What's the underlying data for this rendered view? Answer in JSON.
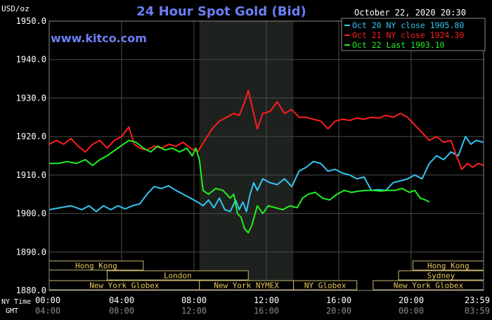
{
  "chart_data": {
    "type": "line",
    "title": "24 Hour Spot Gold (Bid)",
    "ylabel": "USD/oz",
    "watermark": "www.kitco.com",
    "timestamp": "October 22, 2020 20:30",
    "ylim": [
      1880,
      1950
    ],
    "y_ticks": [
      "1950.0",
      "1940.0",
      "1930.0",
      "1920.0",
      "1910.0",
      "1900.0",
      "1890.0",
      "1880.0"
    ],
    "x_range_hours": [
      0,
      24
    ],
    "x_ticks": [
      {
        "ny": "00:00",
        "gmt": "04:00"
      },
      {
        "ny": "04:00",
        "gmt": "08:00"
      },
      {
        "ny": "08:00",
        "gmt": "12:00"
      },
      {
        "ny": "12:00",
        "gmt": "16:00"
      },
      {
        "ny": "16:00",
        "gmt": "20:00"
      },
      {
        "ny": "20:00",
        "gmt": "00:00"
      },
      {
        "ny": "23:59",
        "gmt": "03:59"
      }
    ],
    "ny_time_label": "NY Time",
    "gmt_label": "GMT",
    "grid": true,
    "highlight_window_hours": [
      8.3,
      13.5
    ],
    "legend_position": "top-right",
    "series": [
      {
        "name": "Oct 20 NY close 1905.80",
        "color": "#33c6f0",
        "points": [
          [
            0,
            1901
          ],
          [
            0.6,
            1901.5
          ],
          [
            1.2,
            1902
          ],
          [
            1.8,
            1901
          ],
          [
            2.2,
            1902
          ],
          [
            2.6,
            1900.5
          ],
          [
            3.0,
            1902
          ],
          [
            3.4,
            1901
          ],
          [
            3.8,
            1902
          ],
          [
            4.2,
            1901.2
          ],
          [
            4.6,
            1902
          ],
          [
            5.0,
            1902.5
          ],
          [
            5.4,
            1905
          ],
          [
            5.8,
            1907
          ],
          [
            6.2,
            1906.5
          ],
          [
            6.6,
            1907.2
          ],
          [
            7.0,
            1906
          ],
          [
            7.4,
            1905
          ],
          [
            7.8,
            1904
          ],
          [
            8.2,
            1903
          ],
          [
            8.5,
            1902
          ],
          [
            8.8,
            1903.5
          ],
          [
            9.1,
            1901.5
          ],
          [
            9.4,
            1904
          ],
          [
            9.7,
            1901
          ],
          [
            10.0,
            1900.5
          ],
          [
            10.3,
            1903.5
          ],
          [
            10.5,
            1901
          ],
          [
            10.7,
            1903
          ],
          [
            10.9,
            1900.5
          ],
          [
            11.1,
            1905
          ],
          [
            11.3,
            1908
          ],
          [
            11.5,
            1906
          ],
          [
            11.8,
            1909
          ],
          [
            12.2,
            1908
          ],
          [
            12.6,
            1907.5
          ],
          [
            13.0,
            1909
          ],
          [
            13.4,
            1907
          ],
          [
            13.8,
            1911
          ],
          [
            14.2,
            1912
          ],
          [
            14.6,
            1913.5
          ],
          [
            15.0,
            1913
          ],
          [
            15.4,
            1911
          ],
          [
            15.8,
            1911.5
          ],
          [
            16.2,
            1910.5
          ],
          [
            16.6,
            1910
          ],
          [
            17.0,
            1909
          ],
          [
            17.4,
            1909.5
          ],
          [
            17.8,
            1906
          ],
          [
            18.2,
            1906.2
          ],
          [
            18.6,
            1906
          ],
          [
            19.0,
            1908
          ],
          [
            19.4,
            1908.5
          ],
          [
            19.8,
            1909
          ],
          [
            20.2,
            1910
          ],
          [
            20.6,
            1909
          ],
          [
            21.0,
            1913
          ],
          [
            21.4,
            1915
          ],
          [
            21.8,
            1914
          ],
          [
            22.2,
            1916
          ],
          [
            22.6,
            1915
          ],
          [
            23.0,
            1920
          ],
          [
            23.3,
            1918
          ],
          [
            23.6,
            1919
          ],
          [
            24.0,
            1918.5
          ]
        ]
      },
      {
        "name": "Oct 21 NY close 1924.30",
        "color": "#ff1e1e",
        "points": [
          [
            0,
            1918
          ],
          [
            0.4,
            1919
          ],
          [
            0.8,
            1918
          ],
          [
            1.2,
            1919.5
          ],
          [
            1.6,
            1917.5
          ],
          [
            2.0,
            1916
          ],
          [
            2.4,
            1918
          ],
          [
            2.8,
            1919
          ],
          [
            3.2,
            1917
          ],
          [
            3.6,
            1919
          ],
          [
            4.0,
            1920
          ],
          [
            4.4,
            1922.5
          ],
          [
            4.7,
            1918
          ],
          [
            5.0,
            1917
          ],
          [
            5.4,
            1916.5
          ],
          [
            5.8,
            1917.5
          ],
          [
            6.2,
            1917
          ],
          [
            6.6,
            1918
          ],
          [
            7.0,
            1917.5
          ],
          [
            7.4,
            1918.5
          ],
          [
            7.8,
            1917
          ],
          [
            8.2,
            1916
          ],
          [
            8.6,
            1919
          ],
          [
            9.0,
            1922
          ],
          [
            9.4,
            1924
          ],
          [
            9.8,
            1925
          ],
          [
            10.2,
            1926
          ],
          [
            10.5,
            1925.5
          ],
          [
            10.8,
            1929
          ],
          [
            11.0,
            1932
          ],
          [
            11.2,
            1928
          ],
          [
            11.5,
            1922
          ],
          [
            11.8,
            1926
          ],
          [
            12.2,
            1926.5
          ],
          [
            12.6,
            1929
          ],
          [
            13.0,
            1926
          ],
          [
            13.4,
            1927
          ],
          [
            13.8,
            1925
          ],
          [
            14.2,
            1925
          ],
          [
            14.6,
            1924.5
          ],
          [
            15.0,
            1924
          ],
          [
            15.4,
            1922
          ],
          [
            15.8,
            1924
          ],
          [
            16.2,
            1924.5
          ],
          [
            16.6,
            1924.2
          ],
          [
            17.0,
            1924.8
          ],
          [
            17.4,
            1924.5
          ],
          [
            17.8,
            1925
          ],
          [
            18.2,
            1924.8
          ],
          [
            18.6,
            1925.5
          ],
          [
            19.0,
            1925
          ],
          [
            19.4,
            1926
          ],
          [
            19.8,
            1925
          ],
          [
            20.2,
            1923
          ],
          [
            20.6,
            1921
          ],
          [
            21.0,
            1919
          ],
          [
            21.4,
            1920
          ],
          [
            21.8,
            1918.5
          ],
          [
            22.2,
            1919
          ],
          [
            22.5,
            1915
          ],
          [
            22.8,
            1911.5
          ],
          [
            23.1,
            1913
          ],
          [
            23.4,
            1912
          ],
          [
            23.7,
            1913
          ],
          [
            24.0,
            1912.5
          ]
        ]
      },
      {
        "name": "Oct 22 Last 1903.10",
        "color": "#22ee22",
        "points": [
          [
            0,
            1913
          ],
          [
            0.5,
            1913
          ],
          [
            1.0,
            1913.5
          ],
          [
            1.5,
            1913
          ],
          [
            2.0,
            1914
          ],
          [
            2.4,
            1912.5
          ],
          [
            2.8,
            1914
          ],
          [
            3.2,
            1915
          ],
          [
            3.5,
            1916
          ],
          [
            3.8,
            1917
          ],
          [
            4.1,
            1918
          ],
          [
            4.4,
            1919
          ],
          [
            4.8,
            1918.5
          ],
          [
            5.2,
            1917
          ],
          [
            5.6,
            1916
          ],
          [
            6.0,
            1917.5
          ],
          [
            6.4,
            1916.5
          ],
          [
            6.8,
            1917
          ],
          [
            7.2,
            1916
          ],
          [
            7.6,
            1917
          ],
          [
            7.9,
            1915
          ],
          [
            8.1,
            1917
          ],
          [
            8.3,
            1914
          ],
          [
            8.5,
            1906
          ],
          [
            8.8,
            1905
          ],
          [
            9.2,
            1906.5
          ],
          [
            9.6,
            1906
          ],
          [
            10.0,
            1904
          ],
          [
            10.2,
            1905
          ],
          [
            10.4,
            1900
          ],
          [
            10.6,
            1899
          ],
          [
            10.8,
            1896
          ],
          [
            11.0,
            1895
          ],
          [
            11.2,
            1897
          ],
          [
            11.5,
            1902
          ],
          [
            11.8,
            1900
          ],
          [
            12.1,
            1902
          ],
          [
            12.5,
            1901.5
          ],
          [
            12.9,
            1901
          ],
          [
            13.3,
            1902
          ],
          [
            13.7,
            1901.5
          ],
          [
            14.0,
            1904
          ],
          [
            14.3,
            1905
          ],
          [
            14.7,
            1905.5
          ],
          [
            15.1,
            1904
          ],
          [
            15.5,
            1903.5
          ],
          [
            15.9,
            1905
          ],
          [
            16.3,
            1906
          ],
          [
            16.7,
            1905.5
          ],
          [
            17.1,
            1905.8
          ],
          [
            17.5,
            1906
          ],
          [
            17.9,
            1906
          ],
          [
            18.3,
            1905.8
          ],
          [
            18.7,
            1906
          ],
          [
            19.1,
            1906
          ],
          [
            19.5,
            1906.5
          ],
          [
            19.9,
            1905.5
          ],
          [
            20.2,
            1906
          ],
          [
            20.5,
            1904
          ],
          [
            20.8,
            1903.5
          ],
          [
            21.0,
            1903
          ]
        ]
      }
    ],
    "sessions": [
      {
        "label": "Hong Kong",
        "start": 0,
        "end": 5.2,
        "row": 0
      },
      {
        "label": "Hong Kong",
        "start": 20.1,
        "end": 24,
        "row": 0
      },
      {
        "label": "London",
        "start": 3.2,
        "end": 11.0,
        "row": 1
      },
      {
        "label": "Sydney",
        "start": 19.3,
        "end": 24,
        "row": 1
      },
      {
        "label": "New York Globex",
        "start": 0,
        "end": 8.3,
        "row": 2
      },
      {
        "label": "New York NYMEX",
        "start": 8.3,
        "end": 13.5,
        "row": 2
      },
      {
        "label": "NY Globex",
        "start": 13.5,
        "end": 17.0,
        "row": 2
      },
      {
        "label": "New York Globex",
        "start": 17.9,
        "end": 24,
        "row": 2
      }
    ]
  }
}
